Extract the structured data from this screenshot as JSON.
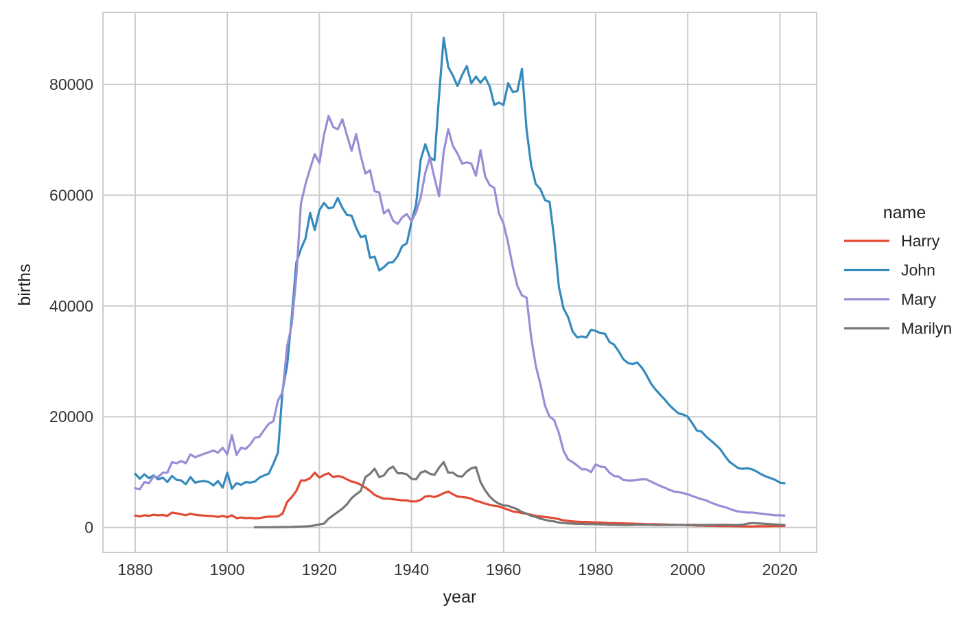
{
  "chart_data": {
    "type": "line",
    "xlabel": "year",
    "ylabel": "births",
    "xlim": [
      1873,
      2028
    ],
    "ylim": [
      -4500,
      93000
    ],
    "xticks": [
      1880,
      1900,
      1920,
      1940,
      1960,
      1980,
      2000,
      2020
    ],
    "yticks": [
      0,
      20000,
      40000,
      60000,
      80000
    ],
    "grid": true,
    "legend": {
      "title": "name",
      "placement": "right"
    },
    "series": [
      {
        "name": "Harry",
        "color": "#e24a33",
        "x": [
          1880,
          1881,
          1882,
          1883,
          1884,
          1885,
          1886,
          1887,
          1888,
          1889,
          1890,
          1891,
          1892,
          1893,
          1894,
          1895,
          1896,
          1897,
          1898,
          1899,
          1900,
          1901,
          1902,
          1903,
          1904,
          1905,
          1906,
          1907,
          1908,
          1909,
          1910,
          1911,
          1912,
          1913,
          1914,
          1915,
          1916,
          1917,
          1918,
          1919,
          1920,
          1921,
          1922,
          1923,
          1924,
          1925,
          1926,
          1927,
          1928,
          1929,
          1930,
          1931,
          1932,
          1933,
          1934,
          1935,
          1936,
          1937,
          1938,
          1939,
          1940,
          1941,
          1942,
          1943,
          1944,
          1945,
          1946,
          1947,
          1948,
          1949,
          1950,
          1951,
          1952,
          1953,
          1954,
          1955,
          1956,
          1957,
          1958,
          1959,
          1960,
          1961,
          1962,
          1963,
          1964,
          1965,
          1966,
          1967,
          1968,
          1969,
          1970,
          1971,
          1972,
          1973,
          1974,
          1975,
          1976,
          1977,
          1978,
          1979,
          1980,
          1981,
          1982,
          1983,
          1984,
          1985,
          1986,
          1987,
          1988,
          1989,
          1990,
          1991,
          1992,
          1993,
          1994,
          1995,
          1996,
          1997,
          1998,
          1999,
          2000,
          2001,
          2002,
          2003,
          2004,
          2005,
          2006,
          2007,
          2008,
          2009,
          2010,
          2011,
          2012,
          2013,
          2014,
          2015,
          2016,
          2017,
          2018,
          2019,
          2020,
          2021
        ],
        "y": [
          2150,
          2000,
          2200,
          2100,
          2300,
          2200,
          2250,
          2100,
          2700,
          2550,
          2400,
          2200,
          2500,
          2300,
          2200,
          2150,
          2100,
          2050,
          1900,
          2100,
          1850,
          2200,
          1700,
          1800,
          1700,
          1750,
          1650,
          1700,
          1850,
          1950,
          1950,
          2000,
          2500,
          4600,
          5500,
          6600,
          8500,
          8500,
          8900,
          9900,
          9000,
          9500,
          9800,
          9100,
          9300,
          9100,
          8700,
          8300,
          8100,
          7700,
          7200,
          6600,
          5900,
          5500,
          5200,
          5200,
          5100,
          5000,
          4900,
          4900,
          4700,
          4700,
          5000,
          5600,
          5700,
          5500,
          5800,
          6200,
          6500,
          6000,
          5600,
          5500,
          5400,
          5200,
          4800,
          4600,
          4300,
          4100,
          3900,
          3800,
          3500,
          3200,
          2900,
          2800,
          2600,
          2500,
          2300,
          2100,
          2000,
          1900,
          1800,
          1700,
          1500,
          1300,
          1200,
          1100,
          1050,
          1000,
          1000,
          950,
          900,
          900,
          850,
          800,
          800,
          750,
          750,
          700,
          700,
          650,
          650,
          600,
          600,
          600,
          550,
          550,
          500,
          500,
          450,
          450,
          400,
          400,
          350,
          350,
          300,
          300,
          280,
          260,
          250,
          240,
          230,
          220,
          210,
          200,
          200,
          210,
          220,
          220,
          230,
          240,
          260,
          280
        ]
      },
      {
        "name": "John",
        "color": "#348abd",
        "x": [
          1880,
          1881,
          1882,
          1883,
          1884,
          1885,
          1886,
          1887,
          1888,
          1889,
          1890,
          1891,
          1892,
          1893,
          1894,
          1895,
          1896,
          1897,
          1898,
          1899,
          1900,
          1901,
          1902,
          1903,
          1904,
          1905,
          1906,
          1907,
          1908,
          1909,
          1910,
          1911,
          1912,
          1913,
          1914,
          1915,
          1916,
          1917,
          1918,
          1919,
          1920,
          1921,
          1922,
          1923,
          1924,
          1925,
          1926,
          1927,
          1928,
          1929,
          1930,
          1931,
          1932,
          1933,
          1934,
          1935,
          1936,
          1937,
          1938,
          1939,
          1940,
          1941,
          1942,
          1943,
          1944,
          1945,
          1946,
          1947,
          1948,
          1949,
          1950,
          1951,
          1952,
          1953,
          1954,
          1955,
          1956,
          1957,
          1958,
          1959,
          1960,
          1961,
          1962,
          1963,
          1964,
          1965,
          1966,
          1967,
          1968,
          1969,
          1970,
          1971,
          1972,
          1973,
          1974,
          1975,
          1976,
          1977,
          1978,
          1979,
          1980,
          1981,
          1982,
          1983,
          1984,
          1985,
          1986,
          1987,
          1988,
          1989,
          1990,
          1991,
          1992,
          1993,
          1994,
          1995,
          1996,
          1997,
          1998,
          1999,
          2000,
          2001,
          2002,
          2003,
          2004,
          2005,
          2006,
          2007,
          2008,
          2009,
          2010,
          2011,
          2012,
          2013,
          2014,
          2015,
          2016,
          2017,
          2018,
          2019,
          2020,
          2021
        ],
        "y": [
          9700,
          8800,
          9600,
          8900,
          9400,
          8700,
          9000,
          8200,
          9300,
          8600,
          8500,
          7800,
          9100,
          8100,
          8300,
          8400,
          8200,
          7600,
          8400,
          7200,
          9900,
          7000,
          8000,
          7700,
          8200,
          8100,
          8300,
          9000,
          9400,
          9700,
          11500,
          13500,
          24700,
          29300,
          38000,
          47800,
          50300,
          52200,
          56800,
          53700,
          57300,
          58600,
          57600,
          57800,
          59500,
          57700,
          56400,
          56300,
          54100,
          52400,
          52700,
          48700,
          48900,
          46400,
          47000,
          47800,
          47900,
          49000,
          50800,
          51300,
          55100,
          58300,
          66400,
          69200,
          66800,
          66300,
          78000,
          88400,
          83100,
          81600,
          79700,
          81700,
          83300,
          80200,
          81400,
          80300,
          81300,
          79600,
          76300,
          76700,
          76300,
          80200,
          78600,
          78800,
          82800,
          71800,
          65400,
          62000,
          61100,
          59100,
          58800,
          52200,
          43500,
          39600,
          38000,
          35400,
          34300,
          34500,
          34300,
          35700,
          35500,
          35100,
          35000,
          33500,
          33000,
          31800,
          30400,
          29700,
          29500,
          29800,
          28900,
          27600,
          26000,
          24900,
          24000,
          23100,
          22100,
          21300,
          20600,
          20400,
          20000,
          18800,
          17500,
          17300,
          16400,
          15700,
          15000,
          14200,
          13000,
          11900,
          11300,
          10700,
          10600,
          10700,
          10500,
          10100,
          9600,
          9200,
          8900,
          8600,
          8100,
          8000
        ]
      },
      {
        "name": "Mary",
        "color": "#988ed5",
        "x": [
          1880,
          1881,
          1882,
          1883,
          1884,
          1885,
          1886,
          1887,
          1888,
          1889,
          1890,
          1891,
          1892,
          1893,
          1894,
          1895,
          1896,
          1897,
          1898,
          1899,
          1900,
          1901,
          1902,
          1903,
          1904,
          1905,
          1906,
          1907,
          1908,
          1909,
          1910,
          1911,
          1912,
          1913,
          1914,
          1915,
          1916,
          1917,
          1918,
          1919,
          1920,
          1921,
          1922,
          1923,
          1924,
          1925,
          1926,
          1927,
          1928,
          1929,
          1930,
          1931,
          1932,
          1933,
          1934,
          1935,
          1936,
          1937,
          1938,
          1939,
          1940,
          1941,
          1942,
          1943,
          1944,
          1945,
          1946,
          1947,
          1948,
          1949,
          1950,
          1951,
          1952,
          1953,
          1954,
          1955,
          1956,
          1957,
          1958,
          1959,
          1960,
          1961,
          1962,
          1963,
          1964,
          1965,
          1966,
          1967,
          1968,
          1969,
          1970,
          1971,
          1972,
          1973,
          1974,
          1975,
          1976,
          1977,
          1978,
          1979,
          1980,
          1981,
          1982,
          1983,
          1984,
          1985,
          1986,
          1987,
          1988,
          1989,
          1990,
          1991,
          1992,
          1993,
          1994,
          1995,
          1996,
          1997,
          1998,
          1999,
          2000,
          2001,
          2002,
          2003,
          2004,
          2005,
          2006,
          2007,
          2008,
          2009,
          2010,
          2011,
          2012,
          2013,
          2014,
          2015,
          2016,
          2017,
          2018,
          2019,
          2020,
          2021
        ],
        "y": [
          7100,
          6900,
          8200,
          8000,
          9200,
          9100,
          9900,
          9900,
          11800,
          11600,
          12000,
          11600,
          13200,
          12700,
          13000,
          13300,
          13600,
          13900,
          13500,
          14400,
          13200,
          16700,
          13100,
          14400,
          14200,
          15000,
          16200,
          16400,
          17600,
          18700,
          19200,
          22900,
          24400,
          32700,
          36600,
          45300,
          58500,
          62000,
          64800,
          67400,
          65800,
          70900,
          74300,
          72300,
          71900,
          73700,
          70800,
          68000,
          71000,
          67100,
          63900,
          64500,
          60700,
          60500,
          56700,
          57400,
          55400,
          54800,
          56000,
          56600,
          55300,
          56900,
          59600,
          64000,
          66800,
          63100,
          59800,
          67800,
          71900,
          68900,
          67500,
          65700,
          65900,
          65700,
          63500,
          68100,
          63400,
          61800,
          61300,
          56700,
          54900,
          51300,
          47100,
          43600,
          41900,
          41500,
          34300,
          29200,
          25900,
          22000,
          20000,
          19400,
          17100,
          13900,
          12300,
          11800,
          11200,
          10500,
          10500,
          10000,
          11400,
          11000,
          10900,
          9900,
          9300,
          9200,
          8600,
          8500,
          8500,
          8600,
          8700,
          8700,
          8300,
          7900,
          7500,
          7200,
          6800,
          6500,
          6400,
          6200,
          6000,
          5700,
          5400,
          5100,
          4900,
          4500,
          4200,
          3900,
          3700,
          3400,
          3100,
          2900,
          2800,
          2700,
          2700,
          2600,
          2500,
          2400,
          2300,
          2200,
          2200,
          2150
        ]
      },
      {
        "name": "Marilyn",
        "color": "#777777",
        "x": [
          1906,
          1907,
          1908,
          1909,
          1910,
          1911,
          1912,
          1913,
          1914,
          1915,
          1916,
          1917,
          1918,
          1919,
          1920,
          1921,
          1922,
          1923,
          1924,
          1925,
          1926,
          1927,
          1928,
          1929,
          1930,
          1931,
          1932,
          1933,
          1934,
          1935,
          1936,
          1937,
          1938,
          1939,
          1940,
          1941,
          1942,
          1943,
          1944,
          1945,
          1946,
          1947,
          1948,
          1949,
          1950,
          1951,
          1952,
          1953,
          1954,
          1955,
          1956,
          1957,
          1958,
          1959,
          1960,
          1961,
          1962,
          1963,
          1964,
          1965,
          1966,
          1967,
          1968,
          1969,
          1970,
          1971,
          1972,
          1973,
          1974,
          1975,
          1976,
          1977,
          1978,
          1979,
          1980,
          1981,
          1982,
          1983,
          1984,
          1985,
          1986,
          1987,
          1988,
          1989,
          1990,
          1991,
          1992,
          1993,
          1994,
          1995,
          1996,
          1997,
          1998,
          1999,
          2000,
          2001,
          2002,
          2003,
          2004,
          2005,
          2006,
          2007,
          2008,
          2009,
          2010,
          2011,
          2012,
          2013,
          2014,
          2015,
          2016,
          2017,
          2018,
          2019,
          2020,
          2021
        ],
        "y": [
          50,
          50,
          50,
          50,
          60,
          70,
          80,
          90,
          110,
          140,
          170,
          200,
          250,
          400,
          550,
          700,
          1600,
          2200,
          2800,
          3400,
          4200,
          5300,
          6000,
          6600,
          9100,
          9700,
          10600,
          9100,
          9400,
          10500,
          11000,
          9800,
          9800,
          9600,
          8800,
          8700,
          9900,
          10200,
          9700,
          9500,
          10800,
          11800,
          9900,
          9900,
          9300,
          9200,
          10100,
          10700,
          10900,
          8200,
          6700,
          5600,
          4800,
          4300,
          4000,
          3900,
          3600,
          3300,
          2800,
          2500,
          2100,
          1900,
          1600,
          1400,
          1200,
          1100,
          900,
          800,
          750,
          700,
          650,
          650,
          600,
          600,
          600,
          550,
          550,
          500,
          500,
          480,
          460,
          460,
          480,
          500,
          520,
          500,
          480,
          460,
          460,
          450,
          450,
          460,
          470,
          480,
          480,
          480,
          470,
          450,
          450,
          470,
          480,
          490,
          500,
          480,
          460,
          470,
          500,
          700,
          800,
          750,
          700,
          650,
          600,
          550,
          500,
          450
        ]
      }
    ]
  }
}
